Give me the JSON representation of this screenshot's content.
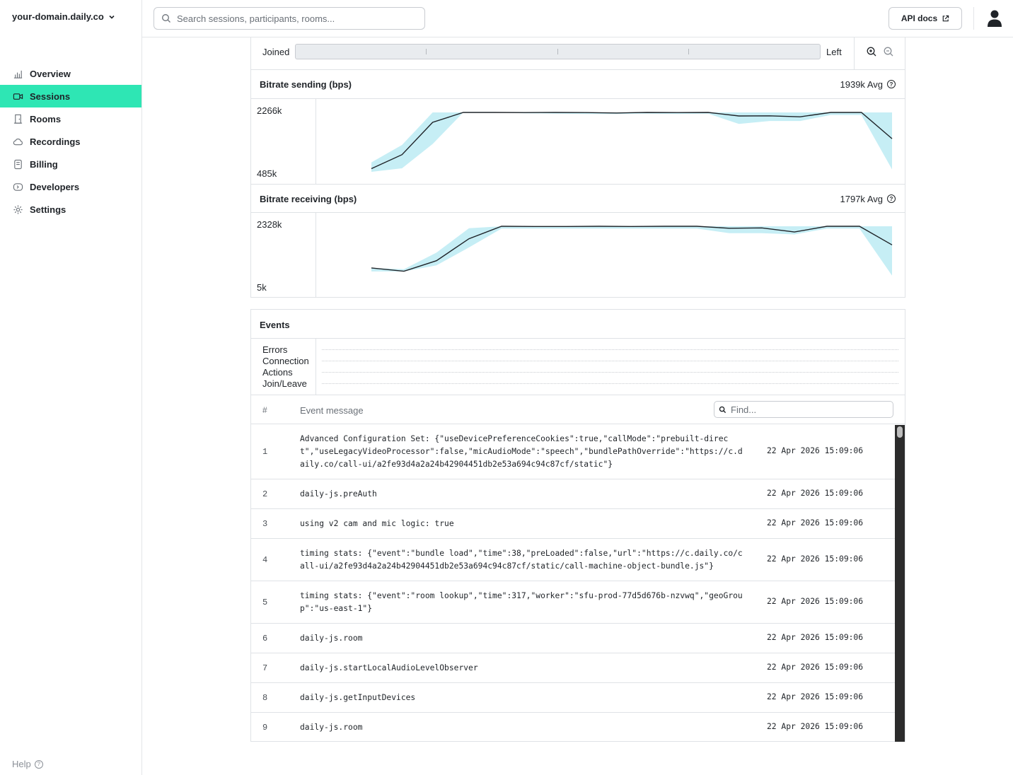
{
  "sidebar": {
    "domain": "your-domain.daily.co",
    "items": [
      {
        "label": "Overview",
        "icon": "bar-chart-icon"
      },
      {
        "label": "Sessions",
        "icon": "video-camera-icon",
        "active": true
      },
      {
        "label": "Rooms",
        "icon": "door-icon"
      },
      {
        "label": "Recordings",
        "icon": "cloud-icon"
      },
      {
        "label": "Billing",
        "icon": "receipt-icon"
      },
      {
        "label": "Developers",
        "icon": "terminal-icon"
      },
      {
        "label": "Settings",
        "icon": "gear-icon"
      }
    ],
    "help_label": "Help"
  },
  "topbar": {
    "search_placeholder": "Search sessions, participants, rooms...",
    "api_docs_label": "API docs"
  },
  "timeline": {
    "joined_label": "Joined",
    "left_label": "Left"
  },
  "bitrate_sending": {
    "title": "Bitrate sending (bps)",
    "avg": "1939k Avg",
    "ymax": "2266k",
    "ymin": "485k"
  },
  "bitrate_receiving": {
    "title": "Bitrate receiving (bps)",
    "avg": "1797k Avg",
    "ymax": "2328k",
    "ymin": "5k"
  },
  "chart_data": [
    {
      "type": "area",
      "title": "Bitrate sending (bps)",
      "ylim": [
        485,
        2266
      ],
      "unit": "k",
      "line": [
        580,
        1000,
        1970,
        2266,
        2266,
        2262,
        2266,
        2262,
        2250,
        2266,
        2262,
        2266,
        2160,
        2164,
        2135,
        2266,
        2266,
        1480
      ],
      "band_low": [
        480,
        590,
        1320,
        2266,
        2266,
        2240,
        2230,
        2220,
        2220,
        2230,
        2220,
        2230,
        1920,
        2010,
        2010,
        2190,
        2190,
        560
      ],
      "band_high": [
        770,
        1290,
        2266,
        2266,
        2266,
        2266,
        2266,
        2266,
        2266,
        2266,
        2266,
        2266,
        2266,
        2266,
        2266,
        2266,
        2266,
        2266
      ]
    },
    {
      "type": "area",
      "title": "Bitrate receiving (bps)",
      "ylim": [
        5,
        2328
      ],
      "unit": "k",
      "line": [
        700,
        570,
        980,
        1840,
        2328,
        2320,
        2320,
        2328,
        2320,
        2328,
        2328,
        2250,
        2265,
        2105,
        2328,
        2328,
        1600
      ],
      "band_low": [
        560,
        560,
        800,
        1500,
        2240,
        2240,
        2240,
        2240,
        2240,
        2240,
        2240,
        2060,
        2060,
        2010,
        2240,
        2240,
        400
      ],
      "band_high": [
        700,
        650,
        1300,
        2250,
        2328,
        2328,
        2328,
        2328,
        2328,
        2328,
        2328,
        2328,
        2328,
        2328,
        2328,
        2328,
        2328
      ]
    }
  ],
  "events": {
    "title": "Events",
    "lanes": [
      "Errors",
      "Connection",
      "Actions",
      "Join/Leave"
    ],
    "col_num": "#",
    "col_msg": "Event message",
    "find_placeholder": "Find...",
    "rows": [
      {
        "n": "1",
        "msg": "Advanced Configuration Set: {\"useDevicePreferenceCookies\":true,\"callMode\":\"prebuilt-direct\",\"useLegacyVideoProcessor\":false,\"micAudioMode\":\"speech\",\"bundlePathOverride\":\"https://c.daily.co/call-ui/a2fe93d4a2a24b42904451db2e53a694c94c87cf/static\"}",
        "time": "22 Apr 2026 15:09:06"
      },
      {
        "n": "2",
        "msg": "daily-js.preAuth",
        "time": "22 Apr 2026 15:09:06"
      },
      {
        "n": "3",
        "msg": "using v2 cam and mic logic: true",
        "time": "22 Apr 2026 15:09:06"
      },
      {
        "n": "4",
        "msg": "timing stats: {\"event\":\"bundle load\",\"time\":38,\"preLoaded\":false,\"url\":\"https://c.daily.co/call-ui/a2fe93d4a2a24b42904451db2e53a694c94c87cf/static/call-machine-object-bundle.js\"}",
        "time": "22 Apr 2026 15:09:06"
      },
      {
        "n": "5",
        "msg": "timing stats: {\"event\":\"room lookup\",\"time\":317,\"worker\":\"sfu-prod-77d5d676b-nzvwq\",\"geoGroup\":\"us-east-1\"}",
        "time": "22 Apr 2026 15:09:06"
      },
      {
        "n": "6",
        "msg": "daily-js.room",
        "time": "22 Apr 2026 15:09:06"
      },
      {
        "n": "7",
        "msg": "daily-js.startLocalAudioLevelObserver",
        "time": "22 Apr 2026 15:09:06"
      },
      {
        "n": "8",
        "msg": "daily-js.getInputDevices",
        "time": "22 Apr 2026 15:09:06"
      },
      {
        "n": "9",
        "msg": "daily-js.room",
        "time": "22 Apr 2026 15:09:06"
      }
    ]
  },
  "colors": {
    "accent": "#2ee6b4",
    "band": "#c6eef5",
    "line": "#1f2328"
  }
}
